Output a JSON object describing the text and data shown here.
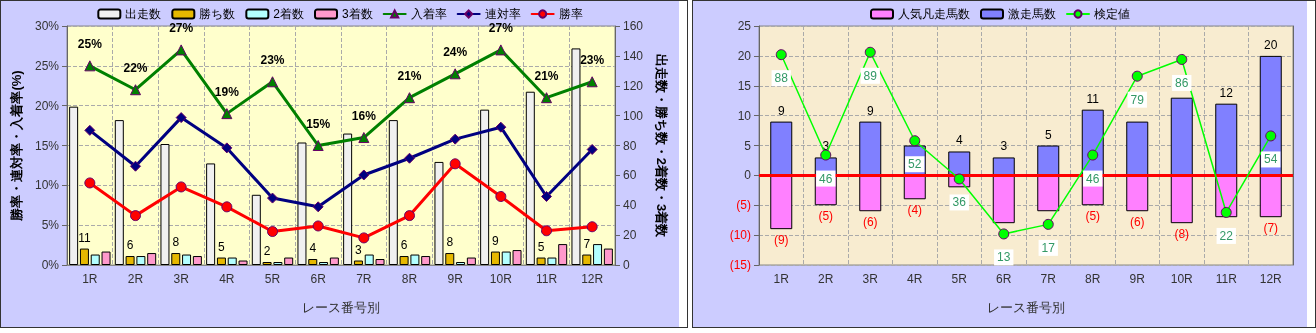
{
  "chart_data": [
    {
      "type": "bar",
      "xlabel": "レース番号別",
      "ylabel": "勝率・連対率・入着率(%)",
      "y2label": "出走数・勝ち数・2着数・3着数",
      "categories": [
        "1R",
        "2R",
        "3R",
        "4R",
        "5R",
        "6R",
        "7R",
        "8R",
        "9R",
        "10R",
        "11R",
        "12R"
      ],
      "ylim": [
        0,
        30
      ],
      "yticks": [
        {
          "value": 0,
          "label": "0%"
        },
        {
          "value": 5,
          "label": "5%"
        },
        {
          "value": 10,
          "label": "10%"
        },
        {
          "value": 15,
          "label": "15%"
        },
        {
          "value": 20,
          "label": "20%"
        },
        {
          "value": 25,
          "label": "25%"
        },
        {
          "value": 30,
          "label": "30%"
        }
      ],
      "y2lim": [
        0,
        160
      ],
      "y2ticks": [
        0,
        20,
        40,
        60,
        80,
        100,
        120,
        140,
        160
      ],
      "grid": true,
      "legend": "top",
      "series": [
        {
          "name": "出走数",
          "axis": "y2",
          "color": "#f0f0f0",
          "values": [
            106,
            97,
            81,
            68,
            47,
            82,
            88,
            97,
            69,
            104,
            116,
            145
          ]
        },
        {
          "name": "勝ち数",
          "axis": "y2",
          "color": "#e6b800",
          "values": [
            11,
            6,
            8,
            5,
            2,
            4,
            3,
            6,
            8,
            9,
            5,
            7
          ],
          "value_labels": [
            "11",
            "6",
            "8",
            "5",
            "2",
            "4",
            "3",
            "6",
            "8",
            "9",
            "5",
            "7"
          ]
        },
        {
          "name": "2着数",
          "axis": "y2",
          "color": "#b3ffff",
          "values": [
            7,
            6,
            7,
            5,
            2,
            2,
            7,
            7,
            2,
            9,
            5,
            14
          ]
        },
        {
          "name": "3着数",
          "axis": "y2",
          "color": "#ff99cc",
          "values": [
            9,
            8,
            6,
            3,
            5,
            5,
            4,
            6,
            5,
            10,
            14,
            11
          ]
        },
        {
          "name": "入着率",
          "type": "line",
          "marker": "triangle",
          "color": "#008000",
          "values": [
            25,
            22,
            27,
            19,
            23,
            15,
            16,
            21,
            24,
            27,
            21,
            23
          ],
          "value_labels": [
            "25%",
            "22%",
            "27%",
            "19%",
            "23%",
            "15%",
            "16%",
            "21%",
            "24%",
            "27%",
            "21%",
            "23%"
          ]
        },
        {
          "name": "連対率",
          "type": "line",
          "marker": "diamond",
          "color": "#000080",
          "values": [
            16.9,
            12.4,
            18.5,
            14.7,
            8.4,
            7.3,
            11.3,
            13.4,
            15.8,
            17.3,
            8.6,
            14.5
          ]
        },
        {
          "name": "勝率",
          "type": "line",
          "marker": "circle",
          "color": "#ff0000",
          "values": [
            10.3,
            6.2,
            9.8,
            7.3,
            4.2,
            4.9,
            3.4,
            6.2,
            12.7,
            8.6,
            4.3,
            4.8
          ]
        }
      ]
    },
    {
      "type": "bar",
      "stacked": true,
      "xlabel": "レース番号別",
      "categories": [
        "1R",
        "2R",
        "3R",
        "4R",
        "5R",
        "6R",
        "7R",
        "8R",
        "9R",
        "10R",
        "11R",
        "12R"
      ],
      "ylim": [
        -15,
        25
      ],
      "yticks": [
        {
          "value": -15,
          "label": "(15)"
        },
        {
          "value": -10,
          "label": "(10)"
        },
        {
          "value": -5,
          "label": "(5)"
        },
        0,
        5,
        10,
        15,
        20,
        25
      ],
      "y2lim": [
        0,
        100
      ],
      "grid": true,
      "legend": "top",
      "ref_lines": [
        {
          "axis": "y",
          "value": 0,
          "color": "#ff0000"
        }
      ],
      "series": [
        {
          "name": "人気凡走馬数",
          "color": "#ff80ff",
          "values": [
            -9,
            -5,
            -6,
            -4,
            -2,
            -8,
            -6,
            -5,
            -6,
            -8,
            -7,
            -7
          ],
          "value_labels": [
            "(9)",
            "(5)",
            "(6)",
            "(4)",
            null,
            null,
            null,
            "(5)",
            "(6)",
            "(8)",
            null,
            "(7)"
          ]
        },
        {
          "name": "激走馬数",
          "color": "#8080ff",
          "values": [
            9,
            3,
            9,
            5,
            4,
            3,
            5,
            11,
            9,
            13,
            12,
            20
          ],
          "value_labels": [
            "9",
            "3",
            "9",
            null,
            "4",
            "3",
            "5",
            "11",
            null,
            null,
            "12",
            "20"
          ]
        },
        {
          "name": "検定値",
          "type": "line",
          "axis": "y2",
          "marker": "circle",
          "color": "#00ff00",
          "values": [
            88,
            46,
            89,
            52,
            36,
            13,
            17,
            46,
            79,
            86,
            22,
            54
          ],
          "value_labels": [
            "88",
            "46",
            "89",
            "52",
            "36",
            "13",
            "17",
            "46",
            "79",
            "86",
            "22",
            "54"
          ]
        }
      ]
    }
  ]
}
